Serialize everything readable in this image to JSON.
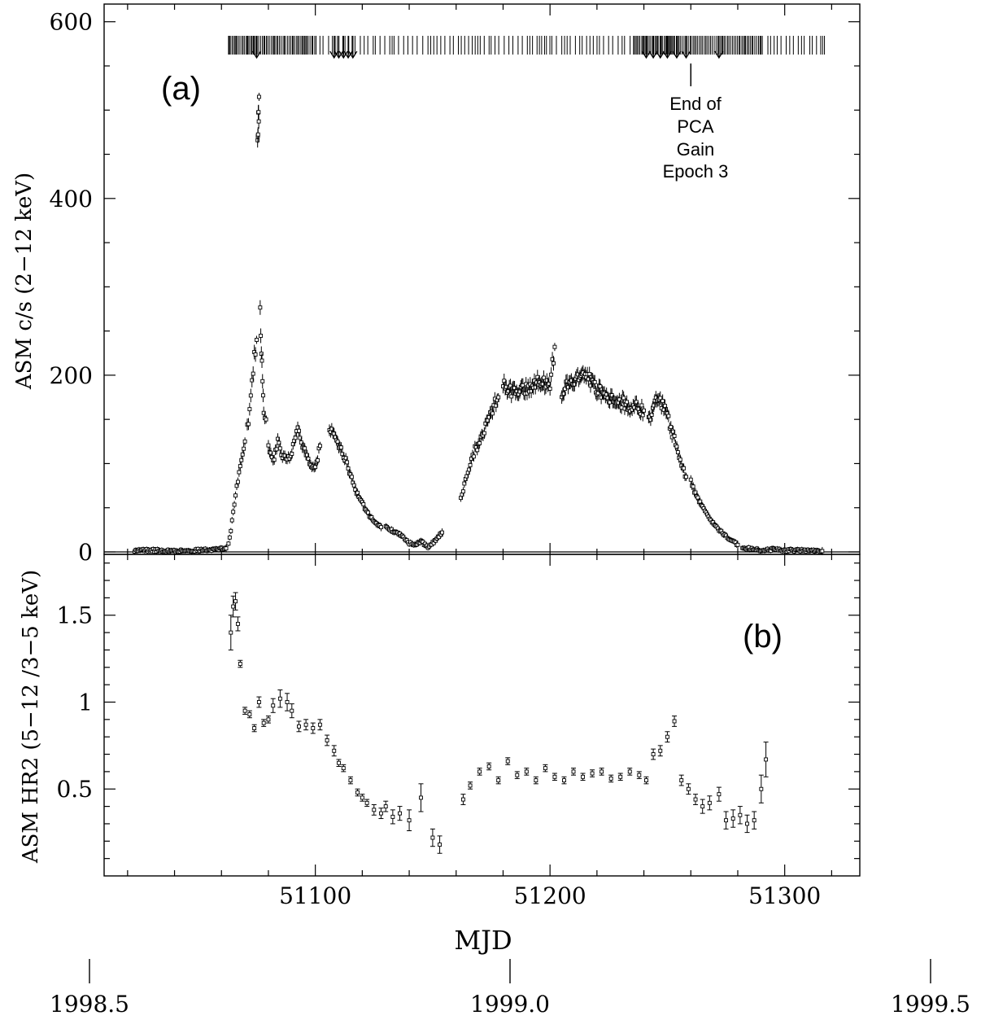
{
  "chart_data": [
    {
      "panel": "a",
      "type": "scatter",
      "panel_label": "(a)",
      "ylabel": "ASM c/s (2−12 keV)",
      "ylim": [
        0,
        620
      ],
      "xlim": [
        51010,
        51332
      ],
      "yticks": [
        0,
        200,
        400,
        600
      ],
      "grid": false,
      "error_bars": true,
      "annotation": {
        "lines": [
          "End of",
          "PCA",
          "Gain",
          "Epoch 3"
        ],
        "mjd": 51260
      },
      "pca_observation_ticks": {
        "mjd_range": [
          51063,
          51318
        ],
        "arrow_mjd": [
          51075,
          51108,
          51110,
          51112,
          51114,
          51116,
          51241,
          51244,
          51247,
          51250,
          51254,
          51258,
          51272
        ]
      },
      "segments": [
        {
          "x": [
            51023,
            51030,
            51040,
            51050,
            51058,
            51062
          ],
          "y": [
            2,
            2,
            1,
            2,
            3,
            4
          ]
        },
        {
          "x": [
            51063,
            51064,
            51065,
            51066,
            51067,
            51068,
            51069,
            51070
          ],
          "y": [
            10,
            25,
            45,
            65,
            80,
            95,
            110,
            125
          ]
        },
        {
          "x": [
            51071,
            51072,
            51073,
            51074,
            51075
          ],
          "y": [
            140,
            160,
            190,
            220,
            240
          ]
        },
        {
          "x": [
            51075.4,
            51075.6,
            51075.8,
            51076
          ],
          "y": [
            470,
            490,
            500,
            515
          ]
        },
        {
          "x": [
            51076.5,
            51077,
            51077.5,
            51078,
            51079
          ],
          "y": [
            270,
            230,
            190,
            160,
            150
          ]
        },
        {
          "x": [
            51080,
            51082,
            51084,
            51086,
            51088,
            51090,
            51092,
            51094,
            51096,
            51098,
            51100,
            51102
          ],
          "y": [
            120,
            100,
            125,
            110,
            105,
            115,
            140,
            125,
            110,
            100,
            95,
            120
          ]
        },
        {
          "x": [
            51106,
            51108,
            51110,
            51112,
            51114,
            51116,
            51118,
            51120,
            51122,
            51124,
            51126,
            51128
          ],
          "y": [
            140,
            130,
            120,
            110,
            95,
            80,
            65,
            55,
            45,
            38,
            32,
            28
          ]
        },
        {
          "x": [
            51130,
            51132,
            51134,
            51136,
            51138,
            51140,
            51142,
            51145,
            51148,
            51150,
            51154
          ],
          "y": [
            30,
            25,
            22,
            20,
            15,
            10,
            8,
            12,
            5,
            10,
            22
          ]
        },
        {
          "x": [
            51162,
            51164,
            51166,
            51168,
            51170,
            51172,
            51174,
            51176,
            51178
          ],
          "y": [
            60,
            80,
            100,
            115,
            125,
            140,
            150,
            165,
            175
          ]
        },
        {
          "x": [
            51180,
            51184,
            51188,
            51192,
            51196,
            51200,
            51202
          ],
          "y": [
            190,
            180,
            185,
            188,
            195,
            190,
            232
          ]
        },
        {
          "x": [
            51205,
            51210,
            51215,
            51220,
            51225,
            51230,
            51235,
            51240
          ],
          "y": [
            180,
            195,
            200,
            185,
            175,
            170,
            165,
            160
          ]
        },
        {
          "x": [
            51242,
            51246,
            51248,
            51250,
            51252,
            51254,
            51256,
            51258
          ],
          "y": [
            150,
            175,
            165,
            155,
            135,
            120,
            100,
            85
          ]
        },
        {
          "x": [
            51260,
            51262,
            51264,
            51266,
            51268,
            51270,
            51272,
            51274,
            51276,
            51278,
            51280
          ],
          "y": [
            80,
            65,
            55,
            45,
            38,
            30,
            25,
            20,
            16,
            12,
            8
          ]
        },
        {
          "x": [
            51282,
            51286,
            51290,
            51295,
            51300,
            51305,
            51310,
            51316
          ],
          "y": [
            5,
            3,
            2,
            3,
            2,
            2,
            2,
            1
          ]
        }
      ]
    },
    {
      "panel": "b",
      "type": "scatter",
      "panel_label": "(b)",
      "ylabel": "ASM HR2 (5−12 /3−5 keV)",
      "xlabel": "MJD",
      "ylim": [
        0.0,
        1.85
      ],
      "xlim": [
        51010,
        51332
      ],
      "yticks": [
        0.5,
        1,
        1.5
      ],
      "yticklabels": [
        "0.5",
        "1",
        "1.5"
      ],
      "xticks": [
        51100,
        51200,
        51300
      ],
      "grid": false,
      "error_bars": true,
      "points": {
        "x": [
          51064,
          51065,
          51066,
          51067,
          51068,
          51070,
          51072,
          51074,
          51076,
          51078,
          51080,
          51082,
          51085,
          51088,
          51090,
          51093,
          51096,
          51099,
          51102,
          51105,
          51108,
          51110,
          51112,
          51115,
          51118,
          51120,
          51122,
          51125,
          51128,
          51130,
          51133,
          51136,
          51140,
          51145,
          51150,
          51153,
          51163,
          51166,
          51170,
          51174,
          51178,
          51182,
          51186,
          51190,
          51194,
          51198,
          51202,
          51206,
          51210,
          51214,
          51218,
          51222,
          51226,
          51230,
          51234,
          51238,
          51241,
          51244,
          51247,
          51250,
          51253,
          51256,
          51259,
          51262,
          51265,
          51268,
          51272,
          51275,
          51278,
          51281,
          51284,
          51287,
          51290,
          51292
        ],
        "y": [
          1.4,
          1.55,
          1.58,
          1.45,
          1.22,
          0.95,
          0.93,
          0.85,
          1.0,
          0.88,
          0.9,
          0.98,
          1.02,
          1.0,
          0.95,
          0.86,
          0.87,
          0.85,
          0.87,
          0.78,
          0.72,
          0.65,
          0.62,
          0.55,
          0.48,
          0.45,
          0.42,
          0.38,
          0.36,
          0.4,
          0.34,
          0.36,
          0.32,
          0.45,
          0.22,
          0.18,
          0.44,
          0.52,
          0.6,
          0.63,
          0.55,
          0.66,
          0.58,
          0.6,
          0.55,
          0.62,
          0.57,
          0.55,
          0.6,
          0.57,
          0.59,
          0.6,
          0.56,
          0.57,
          0.6,
          0.58,
          0.55,
          0.7,
          0.72,
          0.8,
          0.89,
          0.55,
          0.5,
          0.44,
          0.4,
          0.42,
          0.47,
          0.32,
          0.33,
          0.35,
          0.3,
          0.32,
          0.5,
          0.67
        ],
        "err": [
          0.1,
          0.06,
          0.05,
          0.04,
          0.02,
          0.02,
          0.02,
          0.02,
          0.03,
          0.02,
          0.02,
          0.04,
          0.05,
          0.05,
          0.04,
          0.03,
          0.03,
          0.03,
          0.03,
          0.03,
          0.03,
          0.02,
          0.02,
          0.02,
          0.02,
          0.02,
          0.02,
          0.03,
          0.03,
          0.03,
          0.04,
          0.04,
          0.06,
          0.08,
          0.05,
          0.05,
          0.03,
          0.02,
          0.02,
          0.02,
          0.02,
          0.02,
          0.02,
          0.02,
          0.02,
          0.02,
          0.02,
          0.02,
          0.02,
          0.02,
          0.02,
          0.02,
          0.02,
          0.02,
          0.02,
          0.02,
          0.02,
          0.03,
          0.03,
          0.03,
          0.03,
          0.03,
          0.03,
          0.03,
          0.04,
          0.04,
          0.04,
          0.05,
          0.05,
          0.05,
          0.05,
          0.05,
          0.08,
          0.1
        ]
      }
    },
    {
      "panel": "year-axis",
      "type": "axis",
      "year_ticks": [
        1998.5,
        1999.0,
        1999.5
      ],
      "year_labels": [
        "1998.5",
        "1999.0",
        "1999.5"
      ]
    }
  ]
}
